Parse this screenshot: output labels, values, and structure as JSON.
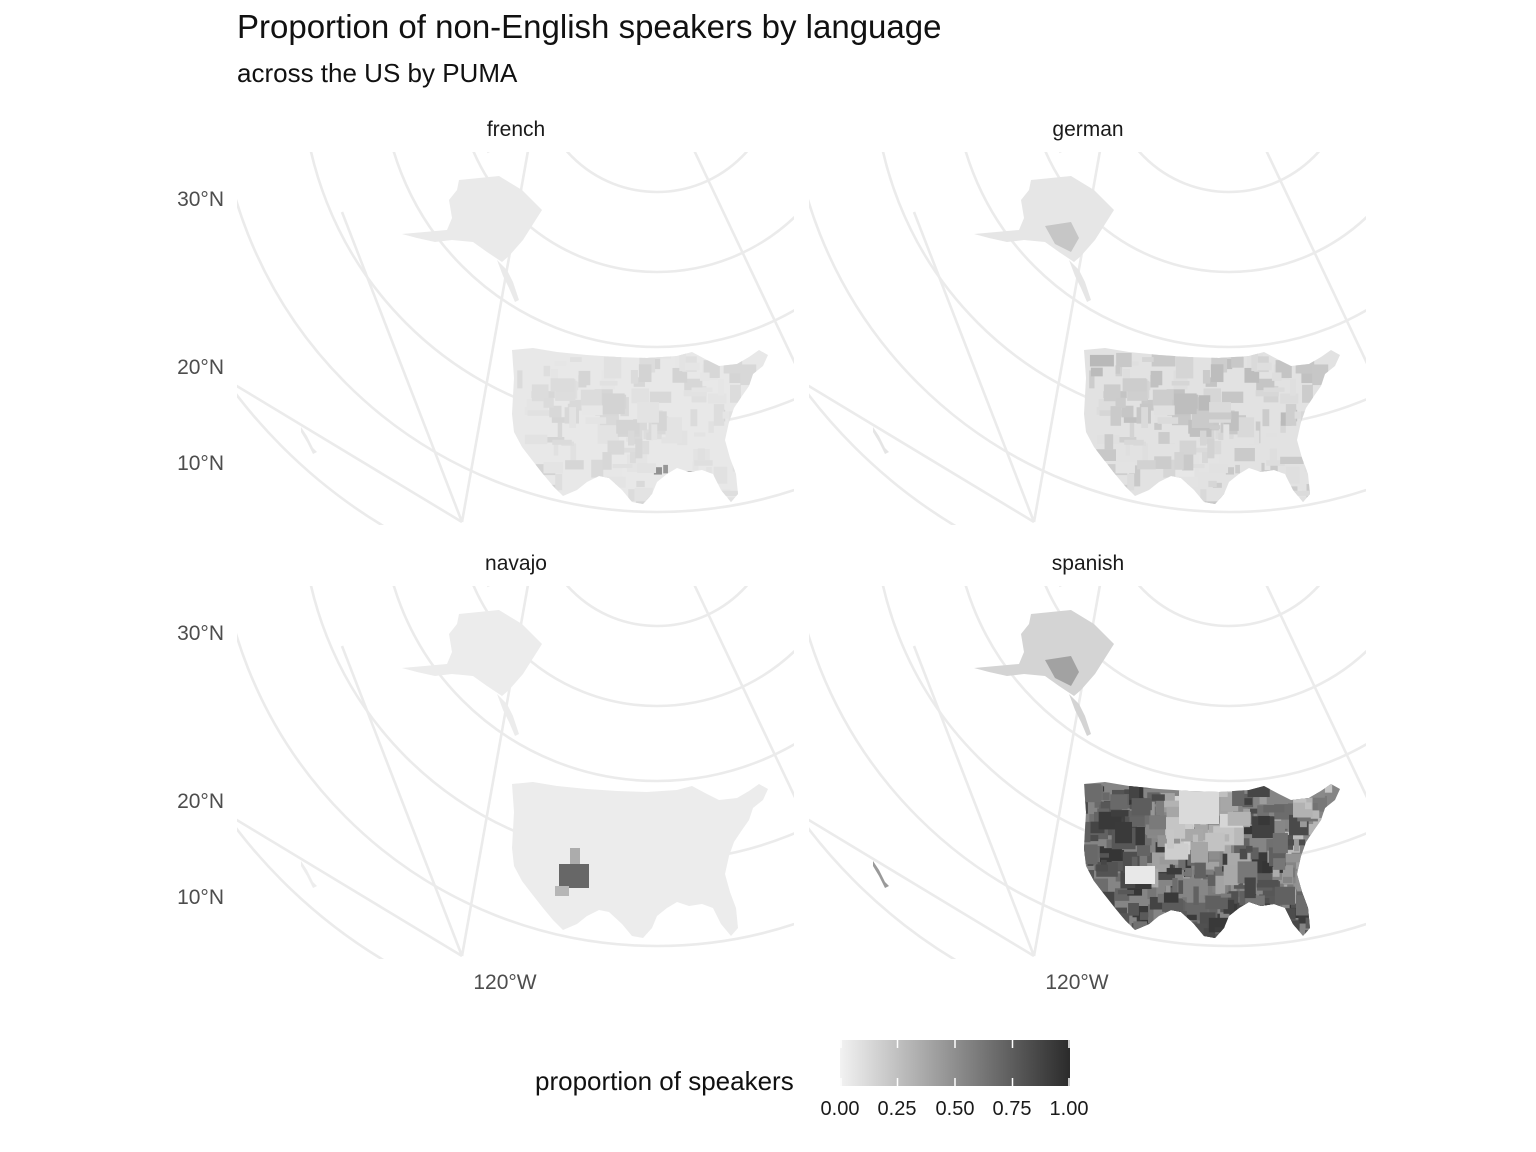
{
  "title": "Proportion of non-English speakers by language",
  "subtitle": "across the US by PUMA",
  "legend": {
    "title": "proportion of speakers",
    "ticks": [
      "0.00",
      "0.25",
      "0.50",
      "0.75",
      "1.00"
    ],
    "scale": "grayscale",
    "low_color": "#f2f2f2",
    "high_color": "#2b2b2b"
  },
  "axes": {
    "y_ticks": [
      "30°N",
      "20°N",
      "10°N"
    ],
    "x_ticks": [
      "120°W"
    ]
  },
  "chart_data": {
    "type": "heatmap",
    "facets": [
      "french",
      "german",
      "navajo",
      "spanish"
    ],
    "fill_range": [
      0,
      1
    ],
    "grid": true
  },
  "panels": [
    {
      "label": "french",
      "key": "french"
    },
    {
      "label": "german",
      "key": "german"
    },
    {
      "label": "navajo",
      "key": "navajo"
    },
    {
      "label": "spanish",
      "key": "spanish"
    }
  ]
}
